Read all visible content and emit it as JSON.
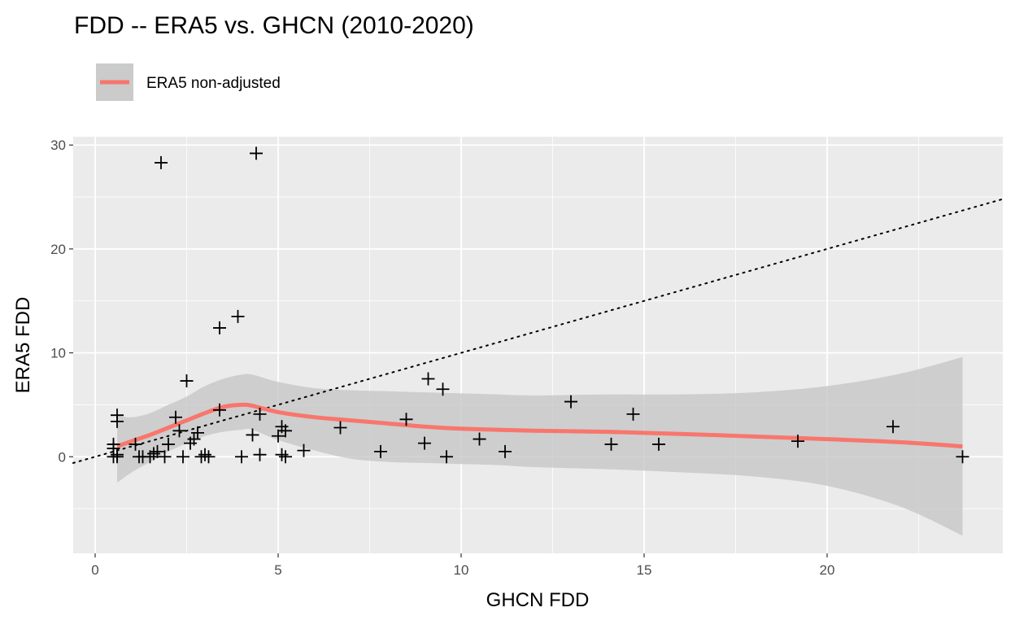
{
  "chart_data": {
    "type": "scatter",
    "title": "FDD -- ERA5 vs. GHCN (2010-2020)",
    "xlabel": "GHCN FDD",
    "ylabel": "ERA5 FDD",
    "xlim": [
      -0.6,
      24.8
    ],
    "ylim": [
      -9.3,
      30.8
    ],
    "x_ticks": [
      0,
      5,
      10,
      15,
      20
    ],
    "x_tick_labels": [
      "0",
      "5",
      "10",
      "15",
      "20"
    ],
    "y_ticks": [
      0,
      10,
      20,
      30
    ],
    "y_tick_labels": [
      "0",
      "10",
      "20",
      "30"
    ],
    "grid": true,
    "legend": {
      "position": "top-left",
      "entries": [
        {
          "label": "ERA5 non-adjusted",
          "color": "#F8766D"
        }
      ]
    },
    "reference_line": {
      "style": "dotted",
      "color": "#000000",
      "x": [
        -0.6,
        24.8
      ],
      "y": [
        -0.6,
        24.8
      ]
    },
    "points": {
      "marker": "plus",
      "color": "#000000",
      "x": [
        0.5,
        0.5,
        0.5,
        0.6,
        0.6,
        0.6,
        0.6,
        1.1,
        1.2,
        1.3,
        1.5,
        1.6,
        1.7,
        1.8,
        1.9,
        2.0,
        2.2,
        2.3,
        2.4,
        2.5,
        2.6,
        2.7,
        2.8,
        2.9,
        3.0,
        3.1,
        3.4,
        3.4,
        3.9,
        4.0,
        4.3,
        4.4,
        4.5,
        4.5,
        5.0,
        5.1,
        5.1,
        5.2,
        5.2,
        5.7,
        6.7,
        7.8,
        8.5,
        9.0,
        9.1,
        9.5,
        9.6,
        10.5,
        11.2,
        13.0,
        14.1,
        14.7,
        15.4,
        19.2,
        21.8,
        23.7
      ],
      "y": [
        0.8,
        1.2,
        0.0,
        4.0,
        3.4,
        0.2,
        0.0,
        1.2,
        0.0,
        0.0,
        0.0,
        0.3,
        0.5,
        28.3,
        0.0,
        1.2,
        3.8,
        2.5,
        0.0,
        7.3,
        1.3,
        1.7,
        2.3,
        0.0,
        0.2,
        0.0,
        12.4,
        4.5,
        13.5,
        0.0,
        2.1,
        29.2,
        4.1,
        0.2,
        2.0,
        2.9,
        0.2,
        2.5,
        0.0,
        0.6,
        2.8,
        0.5,
        3.6,
        1.3,
        7.5,
        6.5,
        0.0,
        1.7,
        0.5,
        5.3,
        1.2,
        4.1,
        1.2,
        1.5,
        2.9,
        0.0
      ]
    },
    "series": [
      {
        "name": "ERA5 non-adjusted",
        "type": "smooth",
        "color": "#F8766D",
        "x": [
          0.6,
          1.0,
          1.5,
          2.0,
          2.5,
          3.0,
          3.5,
          4.0,
          4.3,
          5.0,
          6.0,
          7.0,
          8.0,
          9.0,
          10.0,
          11.0,
          12.0,
          14.0,
          16.0,
          18.0,
          20.0,
          22.0,
          23.7
        ],
        "y": [
          1.0,
          1.5,
          2.1,
          2.8,
          3.5,
          4.2,
          4.8,
          5.0,
          4.9,
          4.3,
          3.8,
          3.5,
          3.2,
          2.9,
          2.7,
          2.6,
          2.5,
          2.4,
          2.2,
          1.95,
          1.7,
          1.4,
          1.0
        ],
        "ci_lower": [
          -2.5,
          -1.5,
          -0.5,
          0.5,
          1.3,
          2.0,
          2.4,
          2.6,
          2.6,
          1.6,
          0.6,
          -0.2,
          -0.5,
          -0.6,
          -0.7,
          -0.8,
          -1.0,
          -1.2,
          -1.5,
          -1.9,
          -2.8,
          -4.8,
          -7.6
        ],
        "ci_upper": [
          4.0,
          3.8,
          4.2,
          5.0,
          5.8,
          6.8,
          7.5,
          7.9,
          7.9,
          7.2,
          6.6,
          6.4,
          6.3,
          6.2,
          6.1,
          6.0,
          5.9,
          6.0,
          6.0,
          6.2,
          6.8,
          8.0,
          9.6
        ]
      }
    ]
  }
}
